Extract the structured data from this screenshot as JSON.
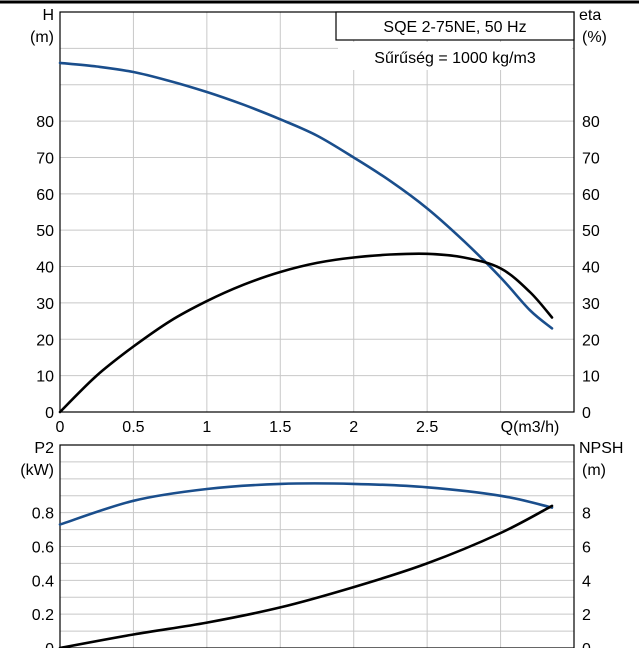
{
  "chart_data": [
    {
      "type": "line",
      "title": "SQE 2-75NE, 50 Hz",
      "subtitle": "Sűrűség = 1000 kg/m3",
      "xlabel": "Q(m3/h)",
      "ylabel_left": [
        "H",
        "(m)"
      ],
      "ylabel_right": [
        "eta",
        "(%)"
      ],
      "xlim": [
        0,
        3.5
      ],
      "ylim": [
        0,
        110
      ],
      "x_ticks": [
        "0",
        "0.5",
        "1",
        "1.5",
        "2",
        "2.5"
      ],
      "y_ticks_left": [
        "0",
        "10",
        "20",
        "30",
        "40",
        "50",
        "60",
        "70",
        "80"
      ],
      "y_ticks_right": [
        "0",
        "10",
        "20",
        "30",
        "40",
        "50",
        "60",
        "70",
        "80"
      ],
      "grid": true,
      "series": [
        {
          "color": "#1a4e8c",
          "x": [
            0,
            0.25,
            0.5,
            0.75,
            1.0,
            1.25,
            1.5,
            1.75,
            2.0,
            2.25,
            2.5,
            2.75,
            3.0,
            3.2,
            3.35
          ],
          "y": [
            96,
            95,
            93.5,
            91,
            88,
            84.5,
            80.5,
            76,
            70,
            63.5,
            56,
            47,
            37,
            28,
            23
          ]
        },
        {
          "color": "#000000",
          "x": [
            0,
            0.25,
            0.5,
            0.75,
            1.0,
            1.25,
            1.5,
            1.75,
            2.0,
            2.25,
            2.5,
            2.75,
            3.0,
            3.2,
            3.35
          ],
          "y": [
            0,
            10,
            18,
            25,
            30.5,
            35,
            38.5,
            41,
            42.5,
            43.3,
            43.5,
            42.5,
            39.5,
            33,
            26
          ]
        }
      ]
    },
    {
      "type": "line",
      "ylabel_left": [
        "P2",
        "(kW)"
      ],
      "ylabel_right": [
        "NPSH",
        "(m)"
      ],
      "xlim": [
        0,
        3.5
      ],
      "ylim": [
        0,
        1.2
      ],
      "y_ticks_left": [
        "0",
        "0.2",
        "0.4",
        "0.6",
        "0.8"
      ],
      "y_ticks_right": [
        "0",
        "2",
        "4",
        "6",
        "8"
      ],
      "grid": true,
      "series": [
        {
          "color": "#1a4e8c",
          "x": [
            0,
            0.5,
            1.0,
            1.5,
            2.0,
            2.5,
            3.0,
            3.35
          ],
          "y": [
            0.73,
            0.87,
            0.94,
            0.97,
            0.97,
            0.95,
            0.9,
            0.83
          ]
        },
        {
          "color": "#000000",
          "x": [
            0,
            0.5,
            1.0,
            1.5,
            2.0,
            2.5,
            3.0,
            3.35
          ],
          "y": [
            0,
            0.08,
            0.15,
            0.24,
            0.36,
            0.5,
            0.68,
            0.84
          ]
        }
      ]
    }
  ]
}
